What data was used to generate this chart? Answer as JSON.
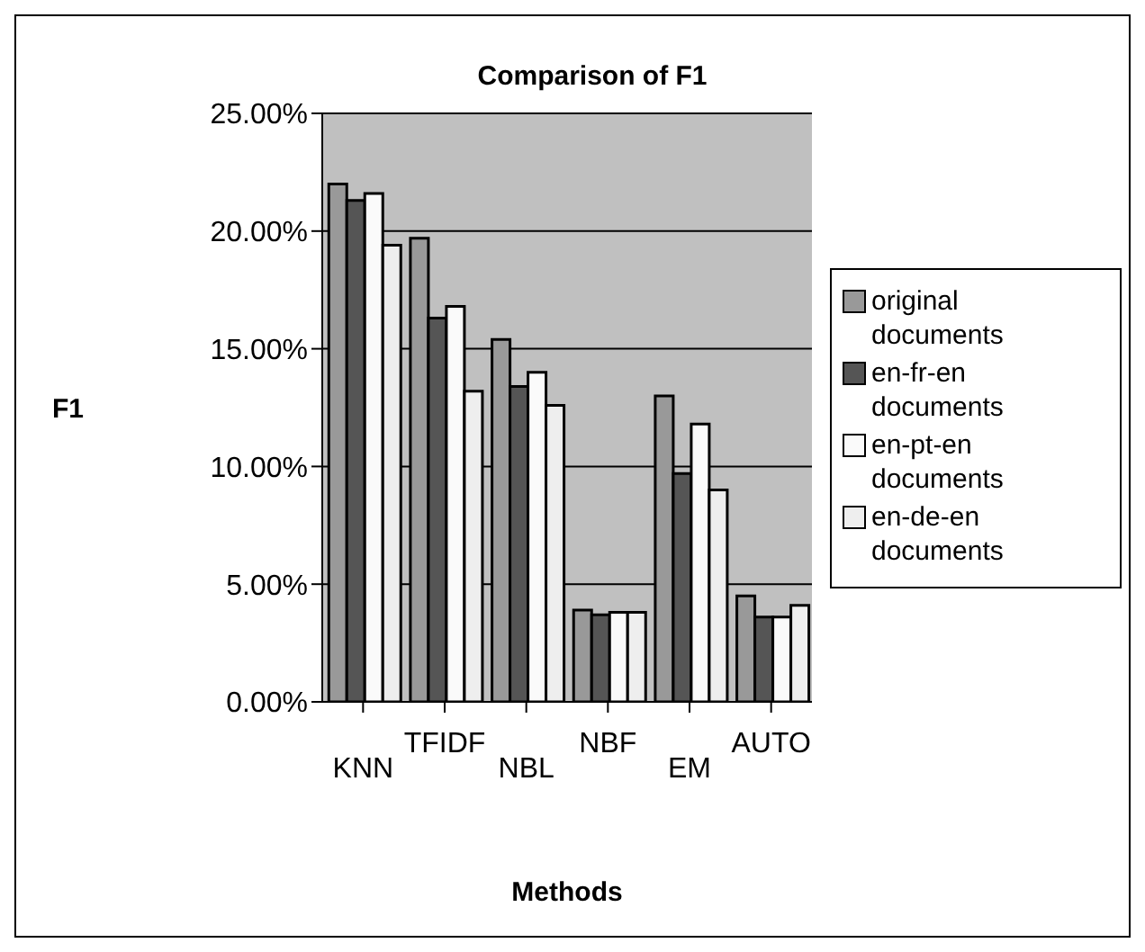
{
  "chart_data": {
    "type": "bar",
    "title": "Comparison of F1",
    "xlabel": "Methods",
    "ylabel": "F1",
    "categories": [
      "KNN",
      "TFIDF",
      "NBL",
      "NBF",
      "EM",
      "AUTO"
    ],
    "series": [
      {
        "name": "original documents",
        "color": "#999999",
        "values": [
          22.0,
          19.7,
          15.4,
          3.9,
          13.0,
          4.5
        ]
      },
      {
        "name": "en-fr-en documents",
        "color": "#555555",
        "values": [
          21.3,
          16.3,
          13.4,
          3.7,
          9.7,
          3.6
        ]
      },
      {
        "name": "en-pt-en documents",
        "color": "#fafafa",
        "values": [
          21.6,
          16.8,
          14.0,
          3.8,
          11.8,
          3.6
        ]
      },
      {
        "name": "en-de-en documents",
        "color": "#eeeeee",
        "values": [
          19.4,
          13.2,
          12.6,
          3.8,
          9.0,
          4.1
        ]
      }
    ],
    "ylim": [
      0,
      25
    ],
    "yticks": [
      {
        "value": 0,
        "label": "0.00%"
      },
      {
        "value": 5,
        "label": "5.00%"
      },
      {
        "value": 10,
        "label": "10.00%"
      },
      {
        "value": 15,
        "label": "15.00%"
      },
      {
        "value": 20,
        "label": "20.00%"
      },
      {
        "value": 25,
        "label": "25.00%"
      }
    ],
    "grid": "y",
    "legend": "right"
  }
}
